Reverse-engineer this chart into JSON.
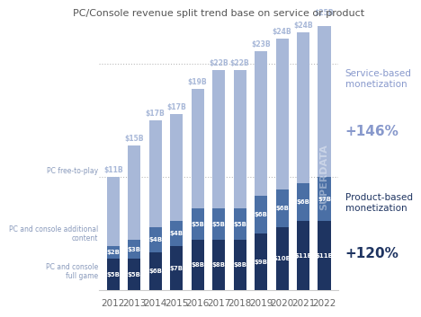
{
  "title": "PC/Console revenue split trend base on service or product",
  "years": [
    "2012",
    "2013",
    "2014",
    "2015",
    "2016",
    "2017",
    "2018",
    "2019",
    "2020",
    "2021",
    "2022"
  ],
  "full_game": [
    5,
    5,
    6,
    7,
    8,
    8,
    8,
    9,
    10,
    11,
    11
  ],
  "additional_content": [
    2,
    3,
    4,
    4,
    5,
    5,
    5,
    6,
    6,
    6,
    7
  ],
  "free_to_play": [
    11,
    15,
    17,
    17,
    19,
    22,
    22,
    23,
    24,
    24,
    25
  ],
  "top_labels": [
    "$11B",
    "$15B",
    "$17B",
    "$17B",
    "$19B",
    "$22B",
    "$22B",
    "$23B",
    "$24B",
    "$24B",
    "$25B"
  ],
  "mid_labels": [
    "$2B",
    "$3B",
    "$4B",
    "$4B",
    "$5B",
    "$5B",
    "$5B",
    "$6B",
    "$6B",
    "$6B",
    "$7B"
  ],
  "bot_labels": [
    "$5B",
    "$5B",
    "$6B",
    "$7B",
    "$8B",
    "$8B",
    "$8B",
    "$9B",
    "$10B",
    "$11B",
    "$11B"
  ],
  "color_full_game": "#1e3461",
  "color_additional": "#4a6fa5",
  "color_freetoplay": "#a8b8d8",
  "color_bg": "#ffffff",
  "right_label_service": "Service-based\nmonetization",
  "right_label_service_pct": "+146%",
  "right_label_product": "Product-based\nmonetization",
  "right_label_product_pct": "+120%",
  "left_label_freetoplay": "PC free-to-play",
  "left_label_additional": "PC and console additional\ncontent",
  "left_label_fullgame": "PC and console\nfull game",
  "superdata_text": "SUPERDATA",
  "ylim_max": 42
}
